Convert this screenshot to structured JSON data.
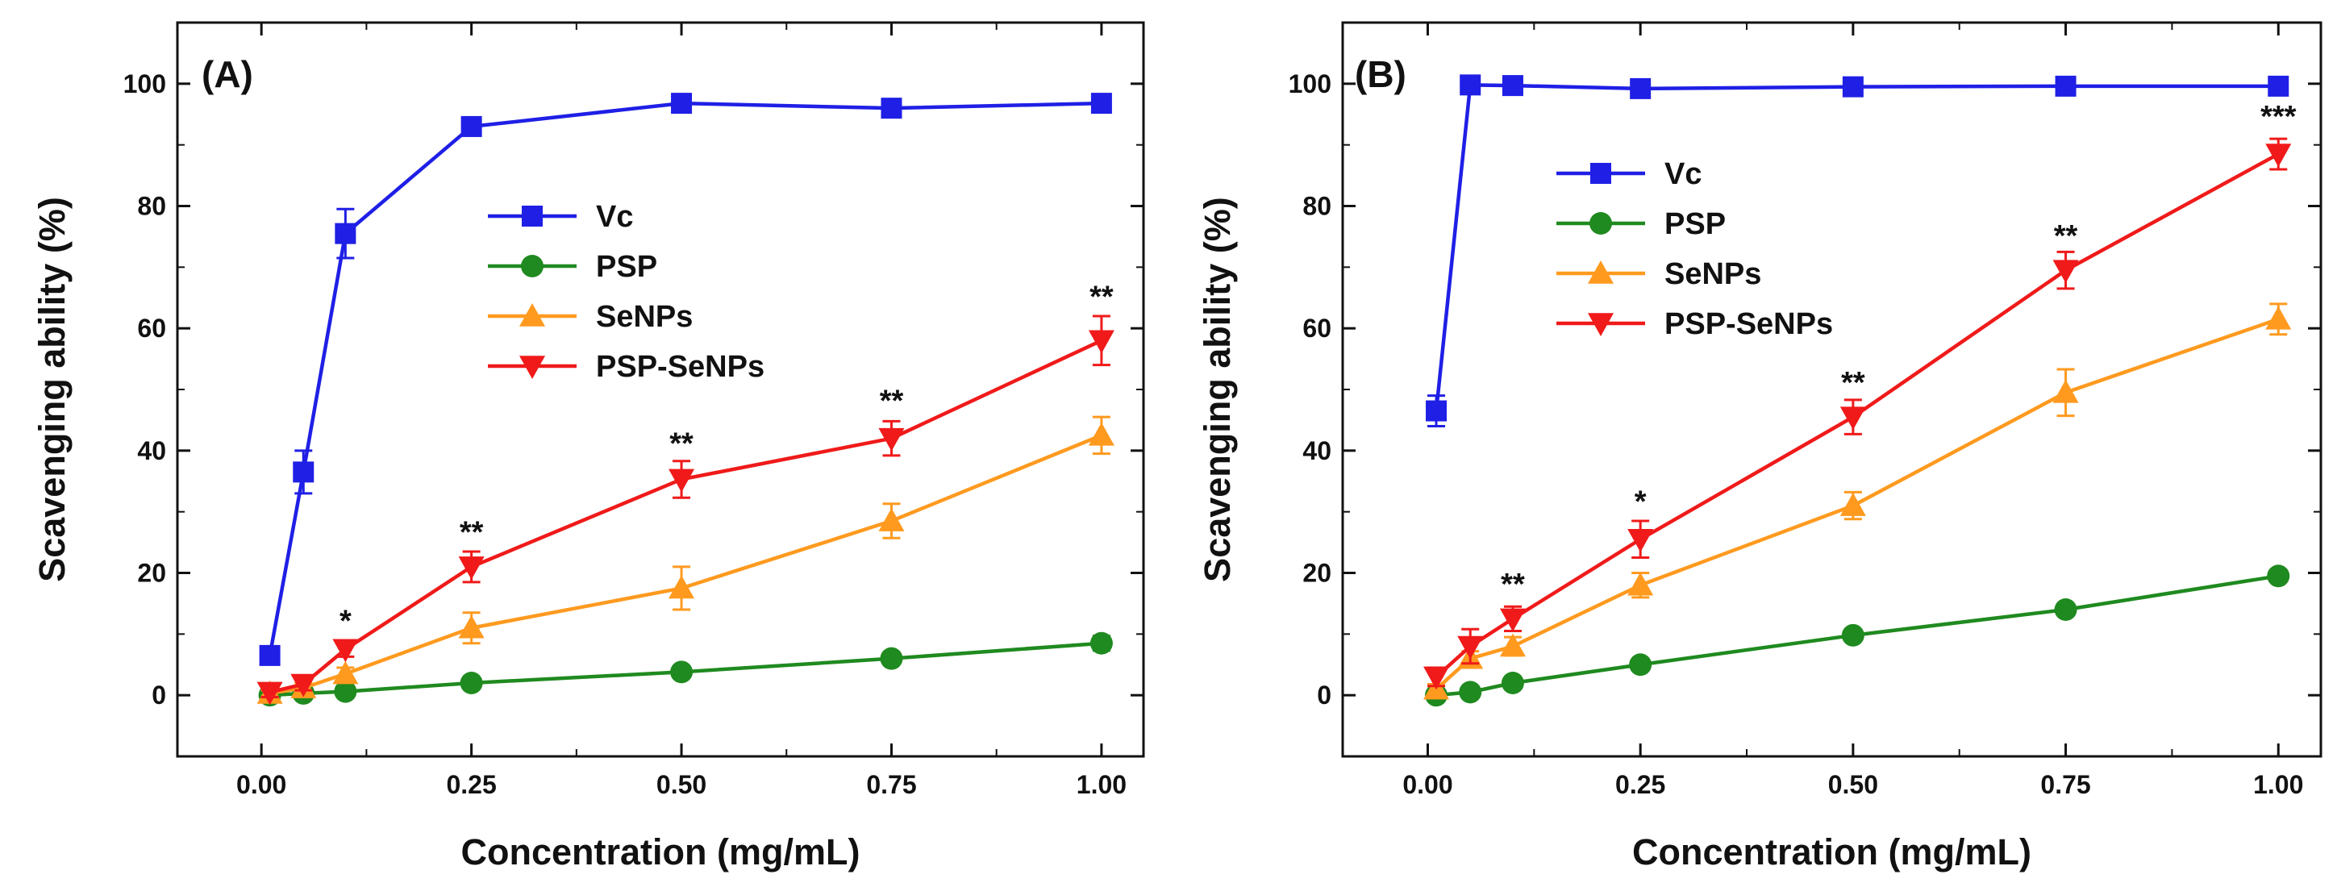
{
  "chart_data": [
    {
      "type": "line",
      "panel_label": "(A)",
      "xlabel": "Concentration (mg/mL)",
      "ylabel": "Scavenging ability (%)",
      "xlim": [
        -0.1,
        1.05
      ],
      "ylim": [
        -10,
        110
      ],
      "xticks": [
        0.0,
        0.25,
        0.5,
        0.75,
        1.0
      ],
      "xtick_labels": [
        "0.00",
        "0.25",
        "0.50",
        "0.75",
        "1.00"
      ],
      "yticks": [
        0,
        20,
        40,
        60,
        80,
        100
      ],
      "ytick_labels": [
        "0",
        "20",
        "40",
        "60",
        "80",
        "100"
      ],
      "legend_position": "center",
      "series": [
        {
          "name": "Vc",
          "color": "#1f1fe6",
          "marker": "square",
          "x": [
            0.01,
            0.05,
            0.1,
            0.25,
            0.5,
            0.75,
            1.0
          ],
          "y": [
            6.5,
            36.5,
            75.5,
            93.0,
            96.8,
            96.0,
            96.8
          ],
          "err": [
            0.5,
            3.5,
            4.0,
            0.8,
            0.6,
            0.6,
            0.6
          ]
        },
        {
          "name": "PSP",
          "color": "#1f8a1f",
          "marker": "circle",
          "x": [
            0.01,
            0.05,
            0.1,
            0.25,
            0.5,
            0.75,
            1.0
          ],
          "y": [
            0.0,
            0.3,
            0.6,
            2.0,
            3.8,
            6.0,
            8.5
          ],
          "err": [
            0.3,
            0.3,
            0.3,
            0.4,
            0.5,
            0.6,
            1.2
          ]
        },
        {
          "name": "SeNPs",
          "color": "#ff9a1f",
          "marker": "triangle-up",
          "x": [
            0.01,
            0.05,
            0.1,
            0.25,
            0.5,
            0.75,
            1.0
          ],
          "y": [
            0.3,
            1.2,
            3.5,
            11.0,
            17.5,
            28.5,
            42.5
          ],
          "err": [
            0.5,
            0.8,
            1.0,
            2.5,
            3.5,
            2.8,
            3.0
          ]
        },
        {
          "name": "PSP-SeNPs",
          "color": "#f01a1a",
          "marker": "triangle-down",
          "x": [
            0.01,
            0.05,
            0.1,
            0.25,
            0.5,
            0.75,
            1.0
          ],
          "y": [
            0.5,
            1.8,
            7.5,
            21.0,
            35.3,
            42.0,
            58.0
          ],
          "err": [
            0.8,
            1.0,
            1.2,
            2.5,
            3.0,
            2.8,
            4.0
          ]
        }
      ],
      "annotations": [
        {
          "text": "*",
          "x": 0.1,
          "y": 10.5
        },
        {
          "text": "**",
          "x": 0.25,
          "y": 25.0
        },
        {
          "text": "**",
          "x": 0.5,
          "y": 39.5
        },
        {
          "text": "**",
          "x": 0.75,
          "y": 46.5
        },
        {
          "text": "**",
          "x": 1.0,
          "y": 63.5
        }
      ]
    },
    {
      "type": "line",
      "panel_label": "(B)",
      "xlabel": "Concentration (mg/mL)",
      "ylabel": "Scavenging ability (%)",
      "xlim": [
        -0.1,
        1.05
      ],
      "ylim": [
        -10,
        110
      ],
      "xticks": [
        0.0,
        0.25,
        0.5,
        0.75,
        1.0
      ],
      "xtick_labels": [
        "0.00",
        "0.25",
        "0.50",
        "0.75",
        "1.00"
      ],
      "yticks": [
        0,
        20,
        40,
        60,
        80,
        100
      ],
      "ytick_labels": [
        "0",
        "20",
        "40",
        "60",
        "80",
        "100"
      ],
      "legend_position": "upper-left",
      "series": [
        {
          "name": "Vc",
          "color": "#1f1fe6",
          "marker": "square",
          "x": [
            0.01,
            0.05,
            0.1,
            0.25,
            0.5,
            0.75,
            1.0
          ],
          "y": [
            46.5,
            99.8,
            99.7,
            99.2,
            99.5,
            99.6,
            99.6
          ],
          "err": [
            2.5,
            0.4,
            0.4,
            0.4,
            0.4,
            0.4,
            0.4
          ]
        },
        {
          "name": "PSP",
          "color": "#1f8a1f",
          "marker": "circle",
          "x": [
            0.01,
            0.05,
            0.1,
            0.25,
            0.5,
            0.75,
            1.0
          ],
          "y": [
            0.0,
            0.5,
            2.0,
            5.0,
            9.8,
            14.0,
            19.5
          ],
          "err": [
            0.3,
            0.3,
            0.4,
            0.5,
            0.6,
            0.6,
            0.8
          ]
        },
        {
          "name": "SeNPs",
          "color": "#ff9a1f",
          "marker": "triangle-up",
          "x": [
            0.01,
            0.05,
            0.1,
            0.25,
            0.5,
            0.75,
            1.0
          ],
          "y": [
            1.0,
            6.0,
            8.0,
            18.0,
            31.0,
            49.5,
            61.5
          ],
          "err": [
            0.8,
            1.2,
            1.5,
            2.0,
            2.2,
            3.8,
            2.5
          ]
        },
        {
          "name": "PSP-SeNPs",
          "color": "#f01a1a",
          "marker": "triangle-down",
          "x": [
            0.01,
            0.05,
            0.1,
            0.25,
            0.5,
            0.75,
            1.0
          ],
          "y": [
            3.0,
            8.0,
            12.5,
            25.5,
            45.5,
            69.5,
            88.5
          ],
          "err": [
            1.5,
            2.8,
            2.0,
            3.0,
            2.8,
            3.0,
            2.5
          ]
        }
      ],
      "annotations": [
        {
          "text": "**",
          "x": 0.1,
          "y": 16.5
        },
        {
          "text": "*",
          "x": 0.25,
          "y": 30.0
        },
        {
          "text": "**",
          "x": 0.5,
          "y": 49.5
        },
        {
          "text": "**",
          "x": 0.75,
          "y": 73.5
        },
        {
          "text": "***",
          "x": 1.0,
          "y": 93.0
        }
      ]
    }
  ]
}
